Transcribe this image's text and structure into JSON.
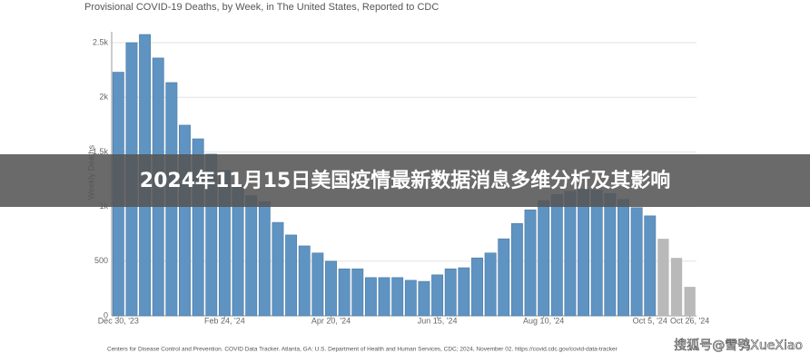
{
  "chart_data": {
    "type": "bar",
    "title": "Provisional COVID-19 Deaths, by Week, in The United States, Reported to CDC",
    "y_label": "Weekly Deaths",
    "source": "Centers for Disease Control and Prevention. COVID Data Tracker. Atlanta, GA: U.S. Department of Health and Human Services, CDC; 2024, November 02. https://covid.cdc.gov/covid-data-tracker",
    "categories": [
      "Dec 30, '23",
      null,
      null,
      null,
      null,
      null,
      null,
      null,
      "Feb 24, '24",
      null,
      null,
      null,
      null,
      null,
      null,
      null,
      "Apr 20, '24",
      null,
      null,
      null,
      null,
      null,
      null,
      null,
      "Jun 15, '24",
      null,
      null,
      null,
      null,
      null,
      null,
      null,
      "Aug 10, '24",
      null,
      null,
      null,
      null,
      null,
      null,
      null,
      "Oct 5, '24",
      null,
      null,
      "Oct 26, '24"
    ],
    "values": [
      2230,
      2500,
      2575,
      2360,
      2135,
      1745,
      1620,
      1480,
      1330,
      1190,
      1100,
      1045,
      855,
      740,
      640,
      575,
      500,
      430,
      430,
      350,
      350,
      350,
      325,
      315,
      375,
      430,
      440,
      530,
      575,
      705,
      845,
      970,
      1055,
      1110,
      1140,
      1160,
      1150,
      1120,
      1065,
      990,
      915,
      705,
      530,
      265
    ],
    "colors": [
      "#5f93c2",
      "#5f93c2",
      "#5f93c2",
      "#5f93c2",
      "#5f93c2",
      "#5f93c2",
      "#5f93c2",
      "#5f93c2",
      "#5f93c2",
      "#5f93c2",
      "#5f93c2",
      "#5f93c2",
      "#5f93c2",
      "#5f93c2",
      "#5f93c2",
      "#5f93c2",
      "#5f93c2",
      "#5f93c2",
      "#5f93c2",
      "#5f93c2",
      "#5f93c2",
      "#5f93c2",
      "#5f93c2",
      "#5f93c2",
      "#5f93c2",
      "#5f93c2",
      "#5f93c2",
      "#5f93c2",
      "#5f93c2",
      "#5f93c2",
      "#5f93c2",
      "#5f93c2",
      "#5f93c2",
      "#5f93c2",
      "#5f93c2",
      "#5f93c2",
      "#5f93c2",
      "#5f93c2",
      "#5f93c2",
      "#5f93c2",
      "#5f93c2",
      "#b9b9b9",
      "#b9b9b9",
      "#b9b9b9"
    ],
    "ylim": [
      0,
      2600
    ],
    "yticks": [
      0,
      500,
      {
        "value": 1000,
        "label": "1k"
      },
      {
        "value": 1500,
        "label": "1.5k"
      },
      {
        "value": 2000,
        "label": "2k"
      },
      {
        "value": 2500,
        "label": "2.5k"
      }
    ],
    "grid": true
  },
  "overlay": {
    "headline": "2024年11月15日美国疫情最新数据消息多维分析及其影响",
    "watermark": "搜狐号@雪鸮XueXiao"
  }
}
